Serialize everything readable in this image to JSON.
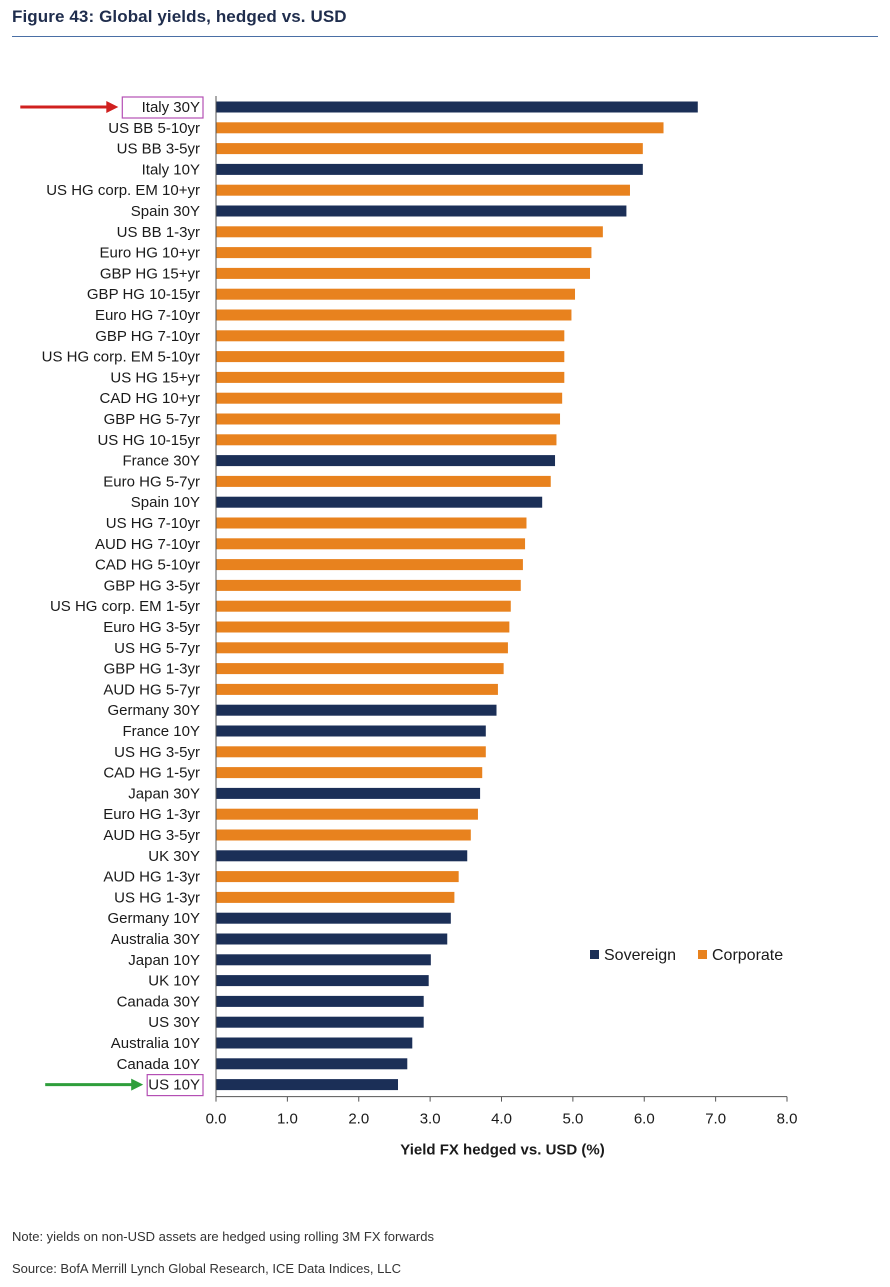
{
  "title": "Figure 43: Global yields, hedged vs. USD",
  "note": "Note: yields on non-USD assets are hedged using rolling 3M FX forwards",
  "source": "Source: BofA Merrill Lynch Global Research, ICE Data Indices, LLC",
  "colors": {
    "Sovereign": "#1b2f57",
    "Corporate": "#e8821e",
    "highlight_box": "#b44fb4",
    "top_arrow": "#d0201f",
    "bottom_arrow": "#2e9e3b"
  },
  "chart_data": {
    "type": "bar",
    "orientation": "horizontal",
    "xlabel": "Yield FX hedged vs. USD (%)",
    "xlim": [
      0,
      8
    ],
    "x_ticks": [
      "0.0",
      "1.0",
      "2.0",
      "3.0",
      "4.0",
      "5.0",
      "6.0",
      "7.0",
      "8.0"
    ],
    "grid": false,
    "legend": {
      "position": "lower-right",
      "entries": [
        "Sovereign",
        "Corporate"
      ]
    },
    "highlighted": [
      "Italy 30Y",
      "US 10Y"
    ],
    "categories": [
      "Italy 30Y",
      "US BB 5-10yr",
      "US BB 3-5yr",
      "Italy 10Y",
      "US HG corp. EM 10+yr",
      "Spain 30Y",
      "US BB 1-3yr",
      "Euro HG 10+yr",
      "GBP HG 15+yr",
      "GBP HG 10-15yr",
      "Euro HG 7-10yr",
      "GBP HG 7-10yr",
      "US HG corp. EM 5-10yr",
      "US HG 15+yr",
      "CAD HG 10+yr",
      "GBP HG 5-7yr",
      "US HG 10-15yr",
      "France 30Y",
      "Euro HG 5-7yr",
      "Spain 10Y",
      "US HG 7-10yr",
      "AUD HG 7-10yr",
      "CAD HG 5-10yr",
      "GBP HG 3-5yr",
      "US HG corp. EM 1-5yr",
      "Euro HG 3-5yr",
      "US HG 5-7yr",
      "GBP HG 1-3yr",
      "AUD HG 5-7yr",
      "Germany 30Y",
      "France 10Y",
      "US HG 3-5yr",
      "CAD HG 1-5yr",
      "Japan 30Y",
      "Euro HG 1-3yr",
      "AUD HG 3-5yr",
      "UK 30Y",
      "AUD HG 1-3yr",
      "US HG 1-3yr",
      "Germany 10Y",
      "Australia 30Y",
      "Japan 10Y",
      "UK 10Y",
      "Canada 30Y",
      "US 30Y",
      "Australia 10Y",
      "Canada 10Y",
      "US 10Y"
    ],
    "values": [
      6.75,
      6.27,
      5.98,
      5.98,
      5.8,
      5.75,
      5.42,
      5.26,
      5.24,
      5.03,
      4.98,
      4.88,
      4.88,
      4.88,
      4.85,
      4.82,
      4.77,
      4.75,
      4.69,
      4.57,
      4.35,
      4.33,
      4.3,
      4.27,
      4.13,
      4.11,
      4.09,
      4.03,
      3.95,
      3.93,
      3.78,
      3.78,
      3.73,
      3.7,
      3.67,
      3.57,
      3.52,
      3.4,
      3.34,
      3.29,
      3.24,
      3.01,
      2.98,
      2.91,
      2.91,
      2.75,
      2.68,
      2.55
    ],
    "series_of": [
      "Sovereign",
      "Corporate",
      "Corporate",
      "Sovereign",
      "Corporate",
      "Sovereign",
      "Corporate",
      "Corporate",
      "Corporate",
      "Corporate",
      "Corporate",
      "Corporate",
      "Corporate",
      "Corporate",
      "Corporate",
      "Corporate",
      "Corporate",
      "Sovereign",
      "Corporate",
      "Sovereign",
      "Corporate",
      "Corporate",
      "Corporate",
      "Corporate",
      "Corporate",
      "Corporate",
      "Corporate",
      "Corporate",
      "Corporate",
      "Sovereign",
      "Sovereign",
      "Corporate",
      "Corporate",
      "Sovereign",
      "Corporate",
      "Corporate",
      "Sovereign",
      "Corporate",
      "Corporate",
      "Sovereign",
      "Sovereign",
      "Sovereign",
      "Sovereign",
      "Sovereign",
      "Sovereign",
      "Sovereign",
      "Sovereign",
      "Sovereign"
    ]
  }
}
